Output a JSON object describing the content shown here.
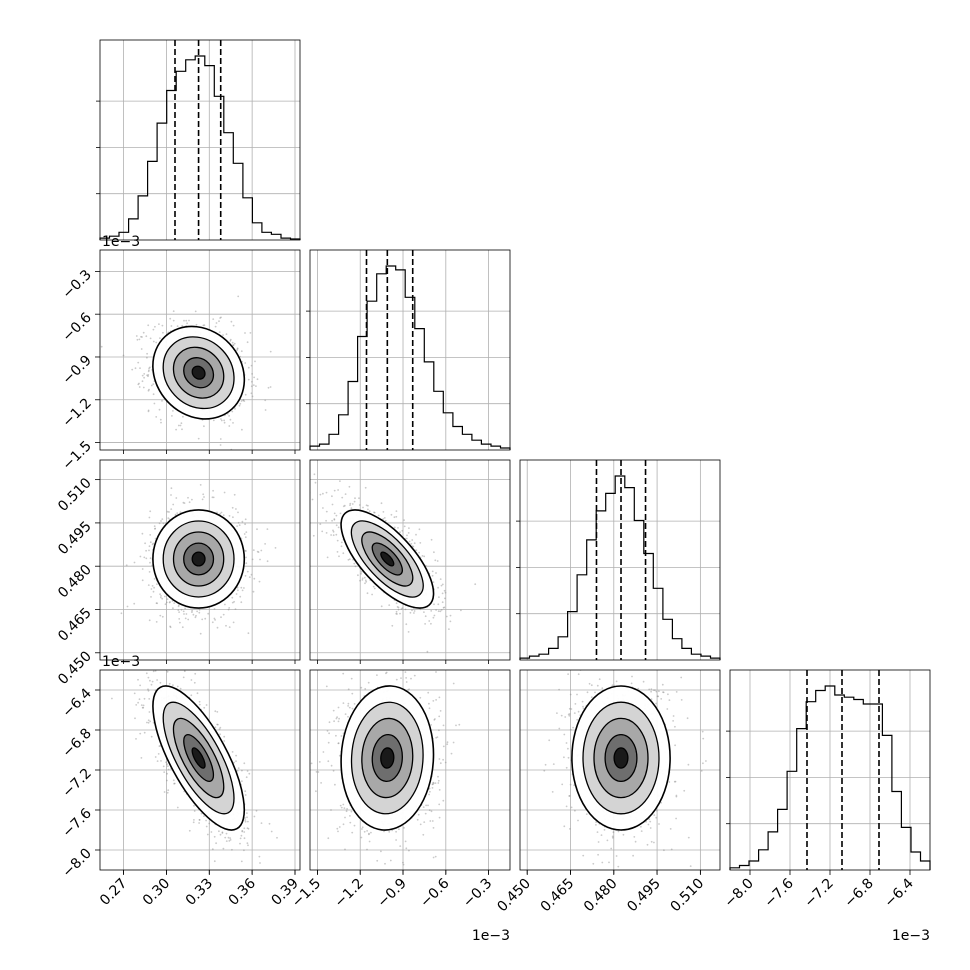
{
  "chart_data": {
    "type": "corner",
    "grid": true,
    "parameters": [
      {
        "ticks": [
          "0.27",
          "0.30",
          "0.33",
          "0.36",
          "0.39"
        ],
        "tick_values": [
          0.27,
          0.3,
          0.33,
          0.36,
          0.39
        ],
        "range": [
          0.2535,
          0.3935
        ],
        "quantiles": [
          0.306,
          0.3225,
          0.338
        ],
        "multiplier": ""
      },
      {
        "ticks": [
          "−1.5",
          "−1.2",
          "−0.9",
          "−0.6",
          "−0.3"
        ],
        "tick_values": [
          -1.5,
          -1.2,
          -0.9,
          -0.6,
          -0.3
        ],
        "range": [
          -1.5521,
          -0.15
        ],
        "quantiles": [
          -1.156,
          -1.01,
          -0.832
        ],
        "multiplier": "1e−3"
      },
      {
        "ticks": [
          "0.450",
          "0.465",
          "0.480",
          "0.495",
          "0.510"
        ],
        "tick_values": [
          0.45,
          0.465,
          0.48,
          0.495,
          0.51
        ],
        "range": [
          0.4475,
          0.5168
        ],
        "quantiles": [
          0.474,
          0.4825,
          0.491
        ],
        "multiplier": ""
      },
      {
        "ticks": [
          "−8.0",
          "−7.6",
          "−7.2",
          "−6.8",
          "−6.4"
        ],
        "tick_values": [
          -8.0,
          -7.6,
          -7.2,
          -6.8,
          -6.4
        ],
        "range": [
          -8.2,
          -6.2
        ],
        "quantiles": [
          -7.43,
          -7.08,
          -6.71
        ],
        "multiplier": "1e−3"
      }
    ],
    "histograms": [
      [
        1,
        2,
        4,
        11,
        23,
        41,
        61,
        78,
        88,
        94,
        96,
        91,
        75,
        56,
        40,
        22,
        9,
        4,
        3,
        1,
        0.5
      ],
      [
        2,
        3,
        8,
        18,
        35,
        58,
        76,
        90,
        94,
        92,
        78,
        62,
        45,
        30,
        19,
        12,
        8,
        5,
        3,
        2,
        1
      ],
      [
        1,
        2,
        3,
        6,
        12,
        25,
        44,
        62,
        77,
        86,
        95,
        89,
        72,
        55,
        37,
        21,
        11,
        6,
        3,
        2,
        1
      ],
      [
        1,
        2,
        4,
        9,
        17,
        27,
        44,
        63,
        75,
        80,
        82,
        78,
        77,
        76,
        74,
        74,
        60,
        35,
        19,
        8,
        4
      ]
    ],
    "contour_pairs": [
      {
        "x": 0,
        "y": 1,
        "correlation": -0.15
      },
      {
        "x": 0,
        "y": 2,
        "correlation": 0.0
      },
      {
        "x": 1,
        "y": 2,
        "correlation": -0.7
      },
      {
        "x": 0,
        "y": 3,
        "correlation": -0.72
      },
      {
        "x": 1,
        "y": 3,
        "correlation": 0.05
      },
      {
        "x": 2,
        "y": 3,
        "correlation": 0.0
      }
    ]
  }
}
